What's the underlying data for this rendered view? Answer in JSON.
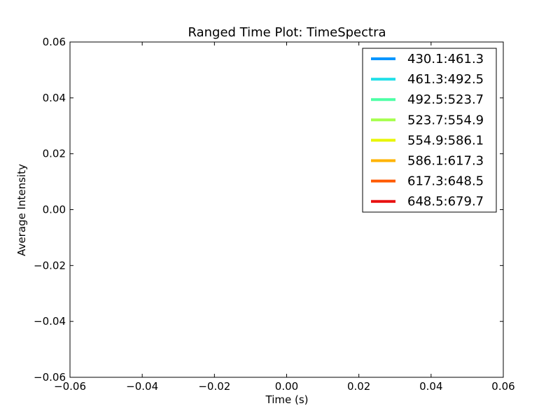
{
  "chart_data": {
    "type": "line",
    "title": "Ranged Time Plot: TimeSpectra",
    "xlabel": "Time (s)",
    "ylabel": "Average Intensity",
    "xlim": [
      -0.06,
      0.06
    ],
    "ylim": [
      -0.06,
      0.06
    ],
    "x_ticks": [
      "−0.06",
      "−0.04",
      "−0.02",
      "0.00",
      "0.02",
      "0.04",
      "0.06"
    ],
    "y_ticks": [
      "−0.06",
      "−0.04",
      "−0.02",
      "0.00",
      "0.02",
      "0.04",
      "0.06"
    ],
    "grid": false,
    "legend_position": "upper-right",
    "series": [
      {
        "name": "430.1:461.3",
        "color": "#0095ff",
        "x": [],
        "y": []
      },
      {
        "name": "461.3:492.5",
        "color": "#22e0e8",
        "x": [],
        "y": []
      },
      {
        "name": "492.5:523.7",
        "color": "#4dffa6",
        "x": [],
        "y": []
      },
      {
        "name": "523.7:554.9",
        "color": "#a6ff4d",
        "x": [],
        "y": []
      },
      {
        "name": "554.9:586.1",
        "color": "#e8f500",
        "x": [],
        "y": []
      },
      {
        "name": "586.1:617.3",
        "color": "#ffb300",
        "x": [],
        "y": []
      },
      {
        "name": "617.3:648.5",
        "color": "#ff5a00",
        "x": [],
        "y": []
      },
      {
        "name": "648.5:679.7",
        "color": "#e81010",
        "x": [],
        "y": []
      }
    ]
  }
}
